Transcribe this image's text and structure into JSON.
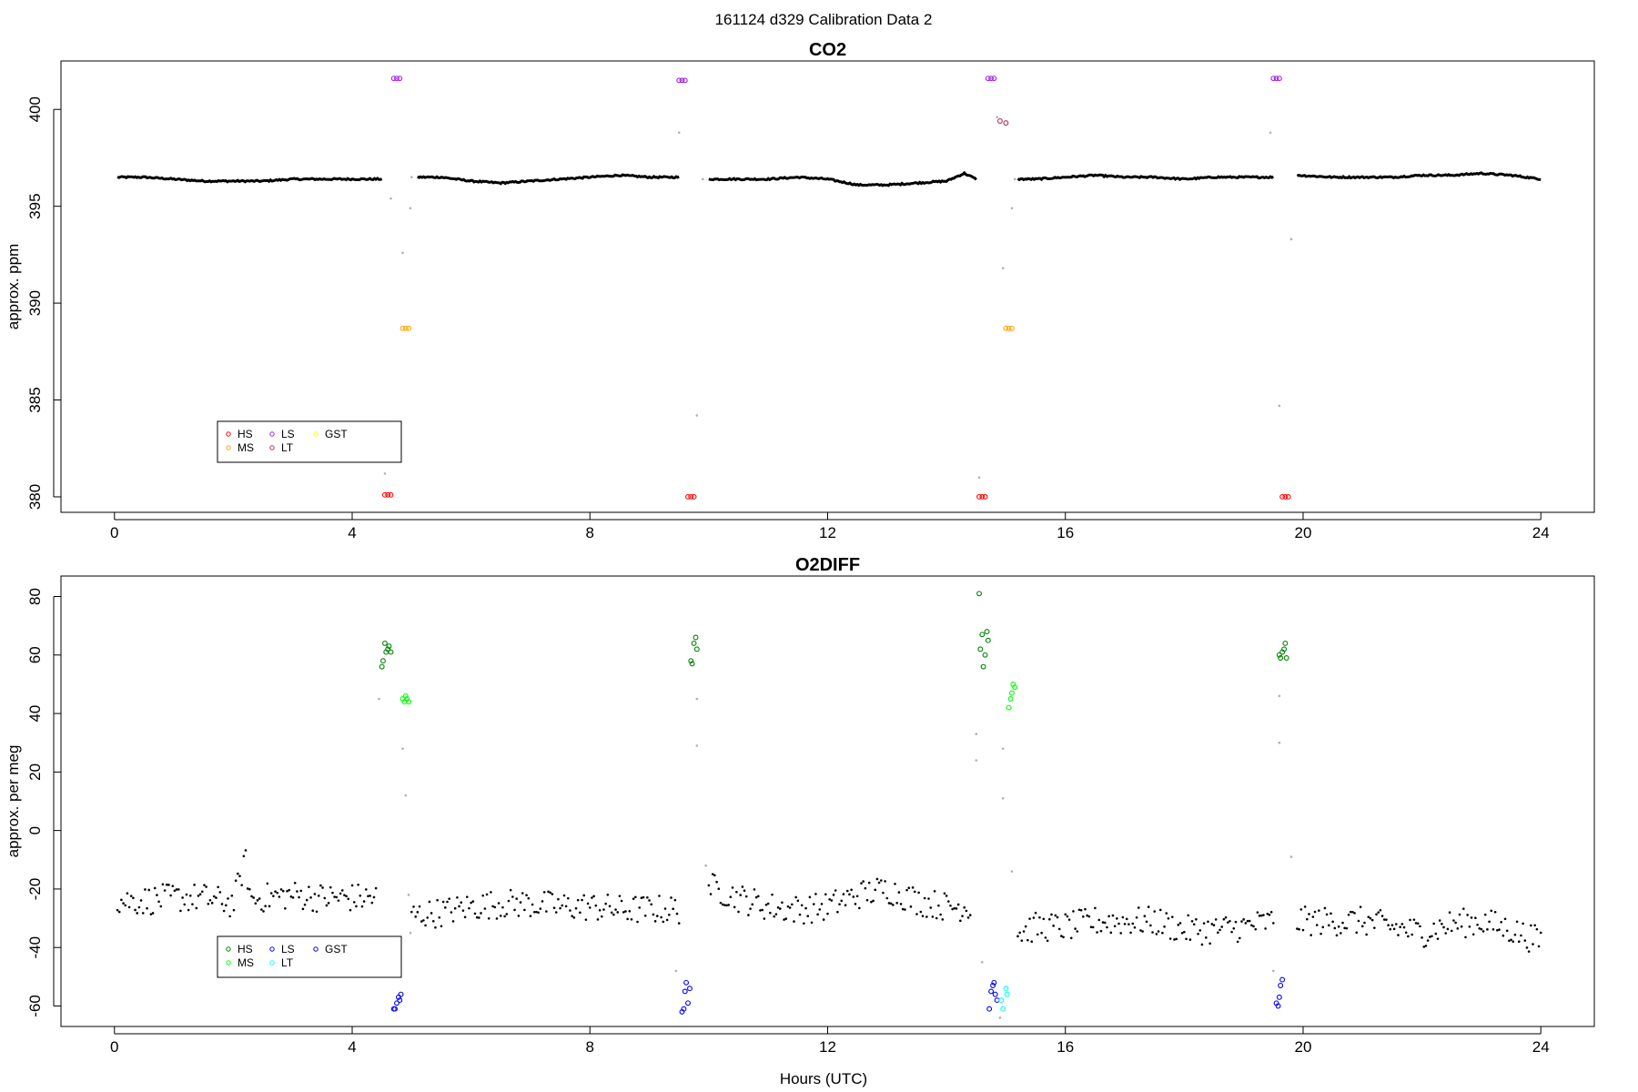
{
  "suptitle": "161124   d329   Calibration Data 2",
  "xlabel": "Hours (UTC)",
  "chart_data": [
    {
      "type": "scatter",
      "title": "CO2",
      "ylabel": "approx. ppm",
      "xlim": [
        -0.9,
        24.9
      ],
      "ylim": [
        379.2,
        402.5
      ],
      "xticks": [
        0,
        4,
        8,
        12,
        16,
        20,
        24
      ],
      "yticks": [
        380,
        385,
        390,
        395,
        400
      ],
      "grid": false,
      "legend": {
        "placement": "bottom-left",
        "entries": [
          {
            "name": "HS",
            "color": "#ff0000"
          },
          {
            "name": "MS",
            "color": "#ffa500"
          },
          {
            "name": "LS",
            "color": "#a020f0"
          },
          {
            "name": "LT",
            "color": "#b03060"
          },
          {
            "name": "GST",
            "color": "#ffff00"
          }
        ]
      },
      "baseline": {
        "color": "#000000",
        "segments": [
          {
            "x": [
              0.05,
              0.5,
              1.0,
              1.5,
              2.0,
              2.5,
              3.0,
              3.5,
              4.0,
              4.5
            ],
            "y": [
              396.5,
              396.5,
              396.4,
              396.3,
              396.3,
              396.3,
              396.4,
              396.4,
              396.4,
              396.4
            ]
          },
          {
            "x": [
              5.1,
              5.5,
              6.0,
              6.5,
              7.0,
              7.5,
              8.0,
              8.5,
              9.0,
              9.5
            ],
            "y": [
              396.5,
              396.5,
              396.3,
              396.2,
              396.3,
              396.4,
              396.5,
              396.6,
              396.5,
              396.5
            ]
          },
          {
            "x": [
              10.0,
              10.5,
              11.0,
              11.5,
              12.0,
              12.5,
              13.0,
              13.5,
              14.0,
              14.3,
              14.5
            ],
            "y": [
              396.4,
              396.4,
              396.4,
              396.5,
              396.4,
              396.1,
              396.1,
              396.2,
              396.3,
              396.7,
              396.4
            ]
          },
          {
            "x": [
              15.2,
              15.5,
              16.0,
              16.5,
              17.0,
              17.5,
              18.0,
              18.5,
              19.0,
              19.5
            ],
            "y": [
              396.4,
              396.4,
              396.5,
              396.6,
              396.5,
              396.5,
              396.4,
              396.5,
              396.5,
              396.5
            ]
          },
          {
            "x": [
              19.9,
              20.5,
              21.0,
              21.5,
              22.0,
              22.5,
              23.0,
              23.5,
              24.0
            ],
            "y": [
              396.6,
              396.5,
              396.5,
              396.5,
              396.6,
              396.6,
              396.7,
              396.6,
              396.4
            ]
          }
        ]
      },
      "transitions": {
        "color": "#b0b0b0",
        "points": [
          {
            "x": 4.55,
            "y": 381.2
          },
          {
            "x": 4.65,
            "y": 395.4
          },
          {
            "x": 4.85,
            "y": 392.6
          },
          {
            "x": 4.98,
            "y": 394.9
          },
          {
            "x": 5.0,
            "y": 396.5
          },
          {
            "x": 9.5,
            "y": 398.8
          },
          {
            "x": 9.8,
            "y": 384.2
          },
          {
            "x": 9.9,
            "y": 396.4
          },
          {
            "x": 14.55,
            "y": 381.0
          },
          {
            "x": 14.85,
            "y": 399.6
          },
          {
            "x": 14.95,
            "y": 391.8
          },
          {
            "x": 15.1,
            "y": 394.9
          },
          {
            "x": 15.15,
            "y": 396.4
          },
          {
            "x": 19.45,
            "y": 398.8
          },
          {
            "x": 19.6,
            "y": 384.7
          },
          {
            "x": 19.8,
            "y": 393.3
          }
        ]
      },
      "series": [
        {
          "name": "HS",
          "color": "#ff0000",
          "x": [
            4.55,
            4.6,
            4.65,
            9.65,
            9.7,
            9.75,
            14.55,
            14.6,
            14.65,
            19.65,
            19.7,
            19.75
          ],
          "y": [
            380.1,
            380.1,
            380.1,
            380.0,
            380.0,
            380.0,
            380.0,
            380.0,
            380.0,
            380.0,
            380.0,
            380.0
          ]
        },
        {
          "name": "MS",
          "color": "#ffa500",
          "x": [
            4.85,
            4.9,
            4.95,
            15.0,
            15.05,
            15.1
          ],
          "y": [
            388.7,
            388.7,
            388.7,
            388.7,
            388.7,
            388.7
          ]
        },
        {
          "name": "LS",
          "color": "#a020f0",
          "x": [
            4.7,
            4.75,
            4.8,
            9.5,
            9.55,
            9.6,
            14.7,
            14.75,
            14.8,
            19.5,
            19.55,
            19.6
          ],
          "y": [
            401.6,
            401.6,
            401.6,
            401.5,
            401.5,
            401.5,
            401.6,
            401.6,
            401.6,
            401.6,
            401.6,
            401.6
          ]
        },
        {
          "name": "LT",
          "color": "#b03060",
          "x": [
            14.9,
            15.0
          ],
          "y": [
            399.4,
            399.3
          ]
        }
      ]
    },
    {
      "type": "scatter",
      "title": "O2DIFF",
      "ylabel": "approx. per meg",
      "xlim": [
        -0.9,
        24.9
      ],
      "ylim": [
        -67,
        87
      ],
      "xticks": [
        0,
        4,
        8,
        12,
        16,
        20,
        24
      ],
      "yticks": [
        -60,
        -40,
        -20,
        0,
        20,
        40,
        60,
        80
      ],
      "grid": false,
      "legend": {
        "placement": "bottom-left",
        "entries": [
          {
            "name": "HS",
            "color": "#008000"
          },
          {
            "name": "MS",
            "color": "#00ff00"
          },
          {
            "name": "LS",
            "color": "#0000ff"
          },
          {
            "name": "LT",
            "color": "#00ffff"
          },
          {
            "name": "GST",
            "color": "#0000cd"
          }
        ]
      },
      "baseline": {
        "color": "#000000",
        "segments": [
          {
            "x": [
              0.05,
              0.5,
              1.0,
              1.5,
              2.0,
              2.2,
              2.3,
              2.5,
              3.0,
              3.5,
              4.0,
              4.4
            ],
            "y": [
              -24,
              -24,
              -23,
              -23,
              -25,
              -10,
              -24,
              -23,
              -22,
              -23,
              -23,
              -23
            ]
          },
          {
            "x": [
              5.0,
              5.5,
              6.0,
              6.5,
              7.0,
              7.5,
              8.0,
              8.5,
              9.0,
              9.5
            ],
            "y": [
              -29,
              -28,
              -26,
              -25,
              -25,
              -26,
              -26,
              -27,
              -27,
              -27
            ]
          },
          {
            "x": [
              10.0,
              10.5,
              11.0,
              11.5,
              12.0,
              12.5,
              13.0,
              13.5,
              14.0,
              14.4
            ],
            "y": [
              -19,
              -23,
              -26,
              -27,
              -26,
              -22,
              -20,
              -24,
              -26,
              -26
            ]
          },
          {
            "x": [
              15.2,
              15.5,
              16.0,
              16.5,
              17.0,
              17.5,
              18.0,
              18.5,
              19.0,
              19.5
            ],
            "y": [
              -35,
              -33,
              -33,
              -31,
              -31,
              -31,
              -34,
              -34,
              -33,
              -31
            ]
          },
          {
            "x": [
              19.9,
              20.5,
              21.0,
              21.5,
              22.0,
              22.5,
              23.0,
              23.5,
              24.0
            ],
            "y": [
              -31,
              -31,
              -31,
              -33,
              -35,
              -32,
              -31,
              -34,
              -38
            ]
          }
        ],
        "amplitude": 5
      },
      "transitions": {
        "color": "#b0b0b0",
        "points": [
          {
            "x": 4.45,
            "y": 45
          },
          {
            "x": 4.85,
            "y": 28
          },
          {
            "x": 4.9,
            "y": 12
          },
          {
            "x": 4.95,
            "y": -22
          },
          {
            "x": 4.98,
            "y": -35
          },
          {
            "x": 9.45,
            "y": -48
          },
          {
            "x": 9.8,
            "y": 45
          },
          {
            "x": 9.8,
            "y": 29
          },
          {
            "x": 9.95,
            "y": -12
          },
          {
            "x": 14.5,
            "y": 33
          },
          {
            "x": 14.5,
            "y": 24
          },
          {
            "x": 14.6,
            "y": -45
          },
          {
            "x": 14.9,
            "y": -64
          },
          {
            "x": 14.95,
            "y": 28
          },
          {
            "x": 14.95,
            "y": 11
          },
          {
            "x": 15.1,
            "y": -14
          },
          {
            "x": 19.5,
            "y": -48
          },
          {
            "x": 19.6,
            "y": 46
          },
          {
            "x": 19.6,
            "y": 30
          },
          {
            "x": 19.8,
            "y": -9
          }
        ]
      },
      "series": [
        {
          "name": "HS",
          "color": "#008000",
          "x": [
            4.5,
            4.52,
            4.55,
            4.57,
            4.6,
            4.62,
            4.65,
            9.7,
            9.72,
            9.75,
            9.78,
            9.8,
            14.55,
            14.57,
            14.6,
            14.62,
            14.65,
            14.68,
            14.7,
            19.6,
            19.62,
            19.65,
            19.68,
            19.7,
            19.72
          ],
          "y": [
            56,
            58,
            64,
            61,
            62,
            63,
            61,
            58,
            57,
            64,
            66,
            62,
            81,
            62,
            67,
            56,
            60,
            68,
            65,
            60,
            59,
            61,
            62,
            64,
            59
          ]
        },
        {
          "name": "MS",
          "color": "#00ff00",
          "x": [
            4.85,
            4.88,
            4.9,
            4.92,
            4.95,
            15.05,
            15.08,
            15.1,
            15.12,
            15.15
          ],
          "y": [
            45,
            44,
            46,
            45,
            44,
            42,
            45,
            47,
            50,
            49
          ]
        },
        {
          "name": "LS",
          "color": "#0000ff",
          "x": [
            4.7,
            4.72,
            4.75,
            4.78,
            4.8,
            4.82,
            9.55,
            9.58,
            9.6,
            9.62,
            9.65,
            9.68,
            14.72,
            14.75,
            14.78,
            14.8,
            14.82,
            14.85,
            19.55,
            19.58,
            19.6,
            19.62,
            19.65
          ],
          "y": [
            -61,
            -61,
            -59,
            -57,
            -58,
            -56,
            -62,
            -61,
            -55,
            -52,
            -59,
            -54,
            -61,
            -55,
            -53,
            -52,
            -56,
            -58,
            -59,
            -60,
            -57,
            -53,
            -51
          ]
        },
        {
          "name": "LT",
          "color": "#00ffff",
          "x": [
            14.92,
            14.95,
            15.0,
            15.02
          ],
          "y": [
            -58,
            -61,
            -54,
            -56
          ]
        }
      ]
    }
  ]
}
